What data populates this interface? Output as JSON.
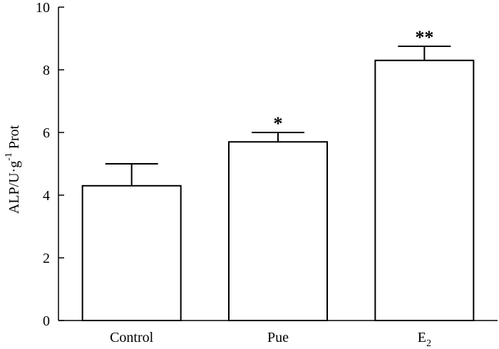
{
  "chart_data": {
    "type": "bar",
    "title": "",
    "xlabel": "",
    "ylabel": {
      "main": "ALP/U·g",
      "superscript": "-1",
      "suffix": "Prot"
    },
    "ylim": [
      0,
      10
    ],
    "yticks": [
      {
        "value": 0,
        "label": "0"
      },
      {
        "value": 2,
        "label": "2"
      },
      {
        "value": 4,
        "label": "4"
      },
      {
        "value": 6,
        "label": "6"
      },
      {
        "value": 8,
        "label": "8"
      },
      {
        "value": 10,
        "label": "10"
      }
    ],
    "categories": [
      {
        "label": "Control",
        "subscript": ""
      },
      {
        "label": "Pue",
        "subscript": ""
      },
      {
        "label": "E",
        "subscript": "2"
      }
    ],
    "values": [
      4.3,
      5.7,
      8.3
    ],
    "errors": [
      0.7,
      0.3,
      0.45
    ],
    "significance": [
      "",
      "*",
      "**"
    ],
    "bar_fill": "#ffffff",
    "line_color": "#000000"
  }
}
